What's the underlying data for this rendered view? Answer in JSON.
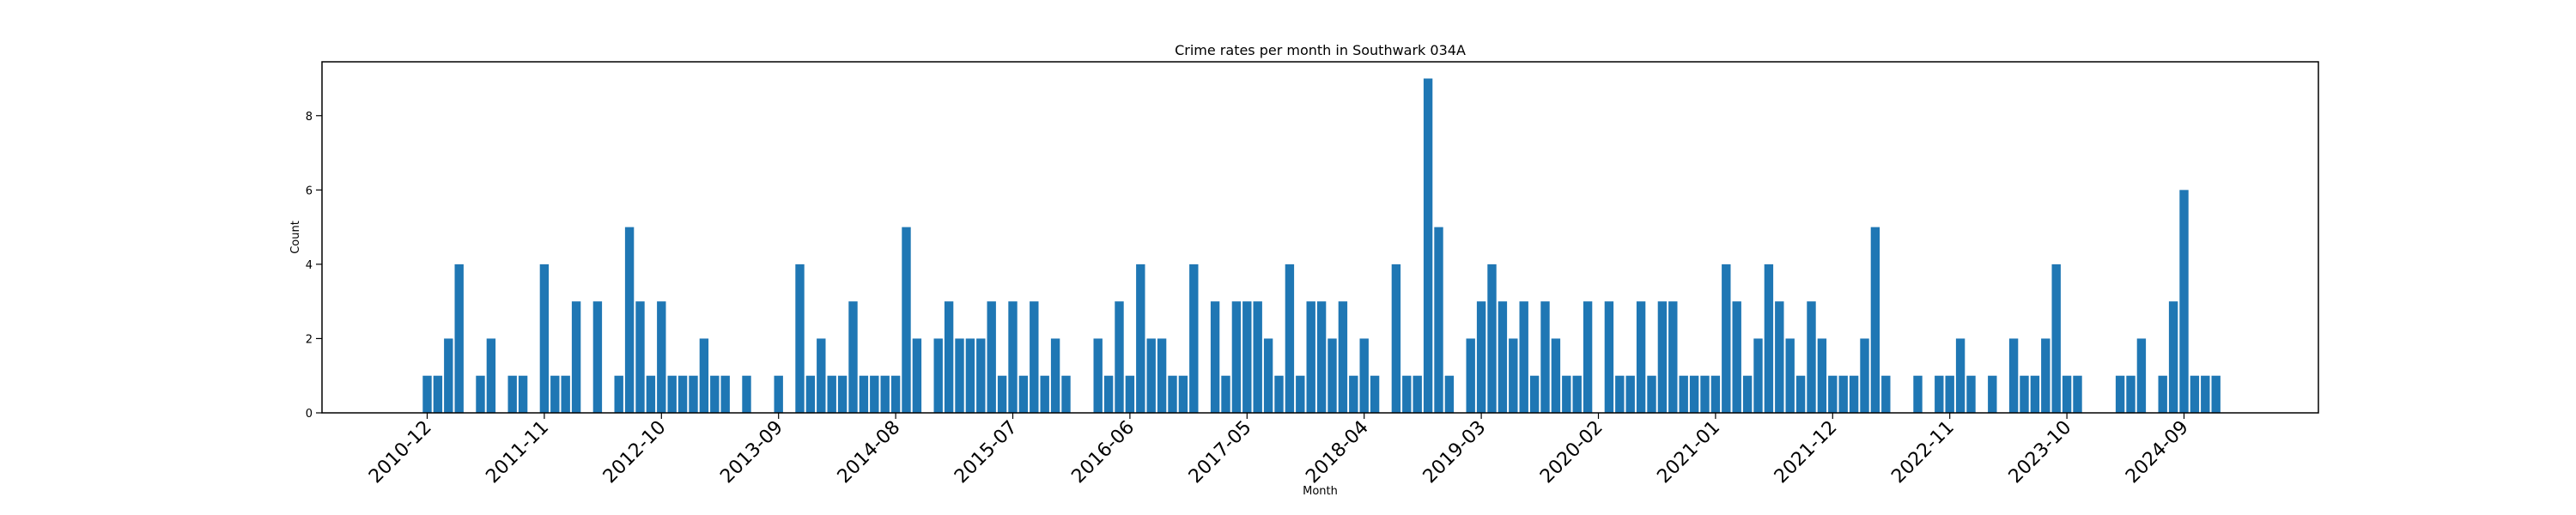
{
  "chart_data": {
    "type": "bar",
    "title": "Crime rates per month in Southwark 034A",
    "xlabel": "Month",
    "ylabel": "Count",
    "ylim": [
      0,
      9.45
    ],
    "yticks": [
      0,
      2,
      4,
      6,
      8
    ],
    "color": "#1f77b4",
    "grid": false,
    "legend": "none",
    "xtick_labels": [
      "2010-12",
      "2011-11",
      "2012-10",
      "2013-09",
      "2014-08",
      "2015-07",
      "2016-06",
      "2017-05",
      "2018-04",
      "2019-03",
      "2020-02",
      "2021-01",
      "2021-12",
      "2022-11",
      "2023-10",
      "2024-09"
    ],
    "categories": [
      "2010-12",
      "2011-01",
      "2011-02",
      "2011-03",
      "2011-04",
      "2011-05",
      "2011-06",
      "2011-07",
      "2011-08",
      "2011-09",
      "2011-10",
      "2011-11",
      "2011-12",
      "2012-01",
      "2012-02",
      "2012-03",
      "2012-04",
      "2012-05",
      "2012-06",
      "2012-07",
      "2012-08",
      "2012-09",
      "2012-10",
      "2012-11",
      "2012-12",
      "2013-01",
      "2013-02",
      "2013-03",
      "2013-04",
      "2013-05",
      "2013-06",
      "2013-07",
      "2013-08",
      "2013-09",
      "2013-10",
      "2013-11",
      "2013-12",
      "2014-01",
      "2014-02",
      "2014-03",
      "2014-04",
      "2014-05",
      "2014-06",
      "2014-07",
      "2014-08",
      "2014-09",
      "2014-10",
      "2014-11",
      "2014-12",
      "2015-01",
      "2015-02",
      "2015-03",
      "2015-04",
      "2015-05",
      "2015-06",
      "2015-07",
      "2015-08",
      "2015-09",
      "2015-10",
      "2015-11",
      "2015-12",
      "2016-01",
      "2016-02",
      "2016-03",
      "2016-04",
      "2016-05",
      "2016-06",
      "2016-07",
      "2016-08",
      "2016-09",
      "2016-10",
      "2016-11",
      "2016-12",
      "2017-01",
      "2017-02",
      "2017-03",
      "2017-04",
      "2017-05",
      "2017-06",
      "2017-07",
      "2017-08",
      "2017-09",
      "2017-10",
      "2017-11",
      "2017-12",
      "2018-01",
      "2018-02",
      "2018-03",
      "2018-04",
      "2018-05",
      "2018-06",
      "2018-07",
      "2018-08",
      "2018-09",
      "2018-10",
      "2018-11",
      "2018-12",
      "2019-01",
      "2019-02",
      "2019-03",
      "2019-04",
      "2019-05",
      "2019-06",
      "2019-07",
      "2019-08",
      "2019-09",
      "2019-10",
      "2019-11",
      "2019-12",
      "2020-01",
      "2020-02",
      "2020-03",
      "2020-04",
      "2020-05",
      "2020-06",
      "2020-07",
      "2020-08",
      "2020-09",
      "2020-10",
      "2020-11",
      "2020-12",
      "2021-01",
      "2021-02",
      "2021-03",
      "2021-04",
      "2021-05",
      "2021-06",
      "2021-07",
      "2021-08",
      "2021-09",
      "2021-10",
      "2021-11",
      "2021-12",
      "2022-01",
      "2022-02",
      "2022-03",
      "2022-04",
      "2022-05",
      "2022-06",
      "2022-07",
      "2022-08",
      "2022-09",
      "2022-10",
      "2022-11",
      "2022-12",
      "2023-01",
      "2023-02",
      "2023-03",
      "2023-04",
      "2023-05",
      "2023-06",
      "2023-07",
      "2023-08",
      "2023-09",
      "2023-10",
      "2023-11",
      "2023-12",
      "2024-01",
      "2024-02",
      "2024-03",
      "2024-04",
      "2024-05",
      "2024-06",
      "2024-07",
      "2024-08",
      "2024-09",
      "2024-10",
      "2024-11",
      "2024-12",
      "2025-01"
    ],
    "values": [
      1,
      1,
      2,
      4,
      0,
      1,
      2,
      0,
      1,
      1,
      0,
      4,
      1,
      1,
      3,
      0,
      3,
      0,
      1,
      5,
      3,
      1,
      3,
      1,
      1,
      1,
      2,
      1,
      1,
      0,
      1,
      0,
      0,
      1,
      0,
      4,
      1,
      2,
      1,
      1,
      3,
      1,
      1,
      1,
      1,
      5,
      2,
      0,
      2,
      3,
      2,
      2,
      2,
      3,
      1,
      3,
      1,
      3,
      1,
      2,
      1,
      0,
      0,
      2,
      1,
      3,
      1,
      4,
      2,
      2,
      1,
      1,
      4,
      0,
      3,
      1,
      3,
      3,
      3,
      2,
      1,
      4,
      1,
      3,
      3,
      2,
      3,
      1,
      2,
      1,
      0,
      4,
      1,
      1,
      9,
      5,
      1,
      0,
      2,
      3,
      4,
      3,
      2,
      3,
      1,
      3,
      2,
      1,
      1,
      3,
      0,
      3,
      1,
      1,
      3,
      1,
      3,
      3,
      1,
      1,
      1,
      1,
      4,
      3,
      1,
      2,
      4,
      3,
      2,
      1,
      3,
      2,
      1,
      1,
      1,
      2,
      5,
      1,
      0,
      0,
      1,
      0,
      1,
      1,
      2,
      1,
      0,
      1,
      0,
      2,
      1,
      1,
      2,
      4,
      1,
      1,
      0,
      0,
      0,
      1,
      1,
      2,
      0,
      1,
      3,
      6,
      1,
      1,
      1,
      0
    ]
  }
}
